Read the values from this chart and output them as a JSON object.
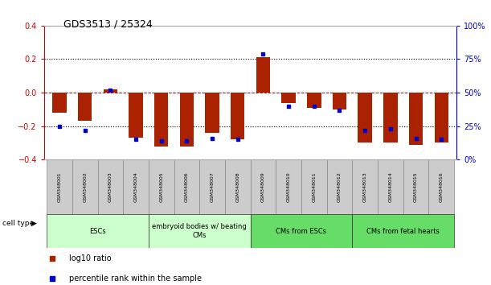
{
  "title": "GDS3513 / 25324",
  "samples": [
    "GSM348001",
    "GSM348002",
    "GSM348003",
    "GSM348004",
    "GSM348005",
    "GSM348006",
    "GSM348007",
    "GSM348008",
    "GSM348009",
    "GSM348010",
    "GSM348011",
    "GSM348012",
    "GSM348013",
    "GSM348014",
    "GSM348015",
    "GSM348016"
  ],
  "log10_ratio": [
    -0.12,
    -0.17,
    0.02,
    -0.27,
    -0.32,
    -0.32,
    -0.24,
    -0.28,
    0.21,
    -0.06,
    -0.09,
    -0.1,
    -0.3,
    -0.3,
    -0.31,
    -0.3
  ],
  "percentile_rank": [
    25,
    22,
    52,
    15,
    14,
    14,
    16,
    15,
    79,
    40,
    40,
    37,
    22,
    23,
    16,
    15
  ],
  "ylim_left": [
    -0.4,
    0.4
  ],
  "ylim_right": [
    0,
    100
  ],
  "yticks_left": [
    -0.4,
    -0.2,
    0.0,
    0.2,
    0.4
  ],
  "yticks_right": [
    0,
    25,
    50,
    75,
    100
  ],
  "cell_types": [
    {
      "label": "ESCs",
      "start": 0,
      "end": 3,
      "color": "#ccffcc"
    },
    {
      "label": "embryoid bodies w/ beating\nCMs",
      "start": 4,
      "end": 7,
      "color": "#ccffcc"
    },
    {
      "label": "CMs from ESCs",
      "start": 8,
      "end": 11,
      "color": "#66dd66"
    },
    {
      "label": "CMs from fetal hearts",
      "start": 12,
      "end": 15,
      "color": "#66dd66"
    }
  ],
  "bar_color": "#aa2200",
  "dot_color": "#0000cc",
  "axis_label_color_left": "#cc0000",
  "axis_label_color_right": "#0000cc",
  "background_color": "#ffffff",
  "sample_box_color": "#cccccc",
  "sample_box_edge": "#888888",
  "cell_type_label": "cell type",
  "legend_log10": "log10 ratio",
  "legend_percentile": "percentile rank within the sample",
  "dotted_line_color": "#000000",
  "zero_line_color": "#cc0000"
}
